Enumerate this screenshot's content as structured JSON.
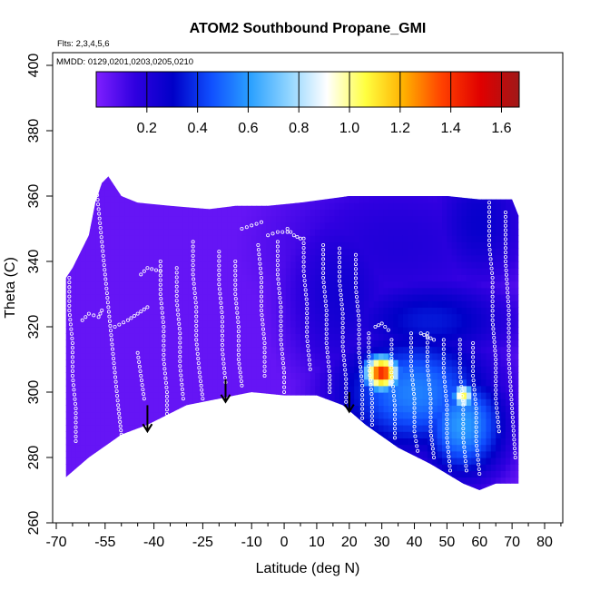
{
  "chart_data": {
    "type": "heatmap",
    "title": "ATOM2 Southbound Propane_GMI",
    "annotations": {
      "flights": "Flts: 2,3,4,5,6",
      "dates": "MMDD: 0129,0201,0203,0205,0210"
    },
    "xlabel": "Latitude (deg N)",
    "ylabel": "Theta (C)",
    "xlim": [
      -70,
      85
    ],
    "ylim": [
      260,
      405
    ],
    "x_ticks": [
      -70,
      -55,
      -40,
      -25,
      -10,
      0,
      10,
      20,
      30,
      40,
      50,
      60,
      70,
      80
    ],
    "x_tick_labels": [
      "-70",
      "-55",
      "-40",
      "-25",
      "-10",
      "0",
      "10",
      "20",
      "30",
      "40",
      "50",
      "60",
      "70",
      "80"
    ],
    "x_minor_ticks": [
      -65,
      -60,
      -50,
      -45,
      -35,
      -30,
      -20,
      -15,
      -5,
      5,
      15,
      25,
      35,
      45,
      55,
      65,
      75,
      85
    ],
    "y_ticks": [
      260,
      280,
      300,
      320,
      340,
      360,
      380,
      400
    ],
    "y_tick_labels": [
      "260",
      "280",
      "300",
      "320",
      "340",
      "360",
      "380",
      "400"
    ],
    "colorbar": {
      "range": [
        0,
        1.67
      ],
      "ticks": [
        0.2,
        0.4,
        0.6,
        0.8,
        1.0,
        1.2,
        1.4,
        1.6
      ],
      "tick_labels": [
        "0.2",
        "0.4",
        "0.6",
        "0.8",
        "1.0",
        "1.2",
        "1.4",
        "1.6"
      ],
      "colors": [
        "#7f1fff",
        "#3000e0",
        "#0000c8",
        "#1050ff",
        "#2aa0ff",
        "#8fd4ff",
        "#ffffff",
        "#ffff40",
        "#ffb000",
        "#ff4000",
        "#e00000",
        "#a01818"
      ]
    },
    "background_value": 0.05,
    "upper_boundary": [
      [
        -67,
        335
      ],
      [
        -65,
        338
      ],
      [
        -60,
        348
      ],
      [
        -58,
        358
      ],
      [
        -56,
        364
      ],
      [
        -54,
        366
      ],
      [
        -50,
        360
      ],
      [
        -45,
        358
      ],
      [
        -35,
        357
      ],
      [
        -23,
        356
      ],
      [
        -15,
        357
      ],
      [
        -5,
        357
      ],
      [
        5,
        358
      ],
      [
        20,
        360
      ],
      [
        30,
        360
      ],
      [
        40,
        360
      ],
      [
        50,
        360
      ],
      [
        60,
        359
      ],
      [
        70,
        359
      ],
      [
        72,
        354
      ]
    ],
    "lower_boundary": [
      [
        -67,
        274
      ],
      [
        -60,
        280
      ],
      [
        -50,
        287
      ],
      [
        -42,
        290
      ],
      [
        -30,
        296
      ],
      [
        -20,
        298
      ],
      [
        -10,
        300
      ],
      [
        0,
        299
      ],
      [
        10,
        299
      ],
      [
        18,
        296
      ],
      [
        25,
        290
      ],
      [
        35,
        283
      ],
      [
        45,
        278
      ],
      [
        55,
        272
      ],
      [
        60,
        270
      ],
      [
        65,
        272
      ],
      [
        72,
        272
      ]
    ],
    "features": [
      {
        "lat": 18,
        "theta": 330,
        "value": 0.25,
        "sx": 14,
        "sy": 22
      },
      {
        "lat": 35,
        "theta": 345,
        "value": 0.2,
        "sx": 30,
        "sy": 20
      },
      {
        "lat": 60,
        "theta": 352,
        "value": 0.28,
        "sx": 12,
        "sy": 16
      },
      {
        "lat": 45,
        "theta": 322,
        "value": 0.35,
        "sx": 20,
        "sy": 10
      },
      {
        "lat": 40,
        "theta": 300,
        "value": 0.55,
        "sx": 18,
        "sy": 14
      },
      {
        "lat": 55,
        "theta": 290,
        "value": 0.6,
        "sx": 10,
        "sy": 12
      },
      {
        "lat": 30,
        "theta": 306,
        "value": 1.45,
        "sx": 4,
        "sy": 4
      },
      {
        "lat": 55,
        "theta": 299,
        "value": 1.05,
        "sx": 2.5,
        "sy": 3
      }
    ],
    "arrows": [
      {
        "lat": -42,
        "theta_top": 296,
        "theta_tip": 288
      },
      {
        "lat": -18,
        "theta_top": 304,
        "theta_tip": 297
      },
      {
        "lat": 20,
        "theta_top": 300,
        "theta_tip": 294
      }
    ],
    "flight_tracks": [
      {
        "points": [
          [
            -62,
            322
          ],
          [
            -60,
            324
          ],
          [
            -57,
            323
          ],
          [
            -56,
            325
          ]
        ]
      },
      {
        "points": [
          [
            -52,
            320
          ],
          [
            -48,
            322
          ],
          [
            -45,
            324
          ],
          [
            -42,
            326
          ]
        ]
      },
      {
        "points": [
          [
            -44,
            336
          ],
          [
            -42,
            338
          ],
          [
            -38,
            337
          ]
        ]
      },
      {
        "points": [
          [
            -13,
            350
          ],
          [
            -10,
            351
          ],
          [
            -7,
            352
          ]
        ]
      },
      {
        "points": [
          [
            -5,
            348
          ],
          [
            -2,
            349
          ],
          [
            1,
            349
          ]
        ]
      },
      {
        "points": [
          [
            1,
            350
          ],
          [
            3,
            348
          ],
          [
            5,
            347
          ]
        ]
      },
      {
        "points": [
          [
            -58,
            366
          ],
          [
            -57,
            356
          ],
          [
            -56,
            346
          ],
          [
            -55,
            336
          ],
          [
            -54,
            326
          ],
          [
            -53,
            316
          ],
          [
            -52,
            306
          ],
          [
            -51,
            296
          ],
          [
            -50,
            287
          ]
        ]
      },
      {
        "points": [
          [
            -66,
            335
          ],
          [
            -66,
            325
          ],
          [
            -65,
            315
          ],
          [
            -65,
            305
          ],
          [
            -64,
            295
          ],
          [
            -64,
            285
          ]
        ]
      },
      {
        "points": [
          [
            -28,
            346
          ],
          [
            -28,
            336
          ],
          [
            -27,
            326
          ],
          [
            -27,
            316
          ],
          [
            -26,
            306
          ],
          [
            -25,
            298
          ]
        ]
      },
      {
        "points": [
          [
            -20,
            343
          ],
          [
            -20,
            333
          ],
          [
            -19,
            323
          ],
          [
            -19,
            313
          ],
          [
            -18,
            303
          ]
        ]
      },
      {
        "points": [
          [
            -33,
            338
          ],
          [
            -33,
            328
          ],
          [
            -32,
            318
          ],
          [
            -32,
            308
          ],
          [
            -31,
            298
          ]
        ]
      },
      {
        "points": [
          [
            -38,
            340
          ],
          [
            -38,
            330
          ],
          [
            -37,
            320
          ],
          [
            -37,
            310
          ],
          [
            -36,
            300
          ],
          [
            -36,
            292
          ]
        ]
      },
      {
        "points": [
          [
            -15,
            340
          ],
          [
            -15,
            330
          ],
          [
            -14,
            320
          ],
          [
            -14,
            310
          ],
          [
            -13,
            302
          ]
        ]
      },
      {
        "points": [
          [
            -8,
            345
          ],
          [
            -7,
            335
          ],
          [
            -7,
            325
          ],
          [
            -6,
            315
          ],
          [
            -6,
            305
          ]
        ]
      },
      {
        "points": [
          [
            -2,
            346
          ],
          [
            -2,
            336
          ],
          [
            -1,
            326
          ],
          [
            -1,
            316
          ],
          [
            0,
            306
          ],
          [
            0,
            300
          ]
        ]
      },
      {
        "points": [
          [
            6,
            347
          ],
          [
            6,
            337
          ],
          [
            7,
            327
          ],
          [
            7,
            317
          ],
          [
            8,
            307
          ]
        ]
      },
      {
        "points": [
          [
            12,
            345
          ],
          [
            12,
            335
          ],
          [
            13,
            325
          ],
          [
            13,
            315
          ],
          [
            14,
            305
          ],
          [
            14,
            300
          ]
        ]
      },
      {
        "points": [
          [
            17,
            344
          ],
          [
            17,
            334
          ],
          [
            18,
            324
          ],
          [
            18,
            314
          ],
          [
            19,
            304
          ],
          [
            19,
            297
          ]
        ]
      },
      {
        "points": [
          [
            22,
            342
          ],
          [
            22,
            332
          ],
          [
            23,
            322
          ],
          [
            23,
            312
          ],
          [
            24,
            302
          ],
          [
            24,
            292
          ]
        ]
      },
      {
        "points": [
          [
            26,
            318
          ],
          [
            26,
            308
          ],
          [
            27,
            298
          ],
          [
            27,
            290
          ]
        ]
      },
      {
        "points": [
          [
            33,
            316
          ],
          [
            33,
            306
          ],
          [
            34,
            296
          ],
          [
            34,
            286
          ]
        ]
      },
      {
        "points": [
          [
            39,
            318
          ],
          [
            39,
            308
          ],
          [
            40,
            298
          ],
          [
            40,
            288
          ],
          [
            41,
            282
          ]
        ]
      },
      {
        "points": [
          [
            44,
            318
          ],
          [
            44,
            308
          ],
          [
            45,
            298
          ],
          [
            45,
            288
          ],
          [
            46,
            280
          ]
        ]
      },
      {
        "points": [
          [
            49,
            316
          ],
          [
            49,
            306
          ],
          [
            50,
            296
          ],
          [
            50,
            286
          ],
          [
            51,
            276
          ]
        ]
      },
      {
        "points": [
          [
            54,
            316
          ],
          [
            54,
            306
          ],
          [
            55,
            296
          ],
          [
            55,
            286
          ],
          [
            56,
            276
          ]
        ]
      },
      {
        "points": [
          [
            58,
            315
          ],
          [
            58,
            305
          ],
          [
            59,
            295
          ],
          [
            59,
            285
          ],
          [
            60,
            275
          ]
        ]
      },
      {
        "points": [
          [
            63,
            358
          ],
          [
            63,
            345
          ],
          [
            64,
            335
          ],
          [
            64,
            322
          ],
          [
            65,
            310
          ],
          [
            65,
            298
          ],
          [
            66,
            288
          ]
        ]
      },
      {
        "points": [
          [
            68,
            355
          ],
          [
            68,
            340
          ],
          [
            69,
            325
          ],
          [
            69,
            310
          ],
          [
            70,
            295
          ],
          [
            71,
            280
          ]
        ]
      },
      {
        "points": [
          [
            -45,
            312
          ],
          [
            -44,
            305
          ],
          [
            -43,
            298
          ]
        ]
      },
      {
        "points": [
          [
            42,
            318
          ],
          [
            44,
            317
          ],
          [
            46,
            316
          ]
        ]
      },
      {
        "points": [
          [
            28,
            320
          ],
          [
            30,
            321
          ],
          [
            32,
            319
          ]
        ]
      }
    ]
  }
}
